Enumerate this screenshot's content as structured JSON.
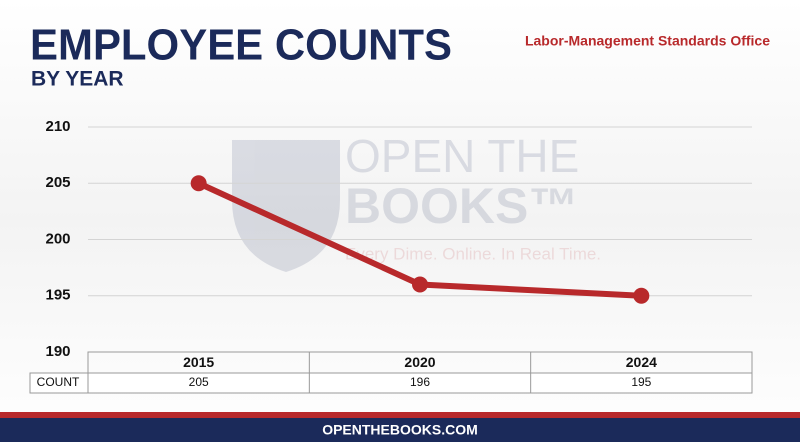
{
  "chart_data": {
    "type": "line",
    "title": "EMPLOYEE COUNTS",
    "subtitle": "BY YEAR",
    "source": "Labor-Management Standards Office",
    "watermark": {
      "line1": "OPEN THE",
      "line2": "BOOKS™",
      "tagline": "Every Dime. Online. In Real Time."
    },
    "footer": "OPENTHEBOOKS.COM",
    "categories": [
      "2015",
      "2020",
      "2024"
    ],
    "series": [
      {
        "name": "COUNT",
        "color": "#b8292b",
        "values": [
          205,
          196,
          195
        ]
      }
    ],
    "ylim": [
      190,
      210
    ],
    "yticks": [
      190,
      195,
      200,
      205,
      210
    ],
    "grid": true
  }
}
